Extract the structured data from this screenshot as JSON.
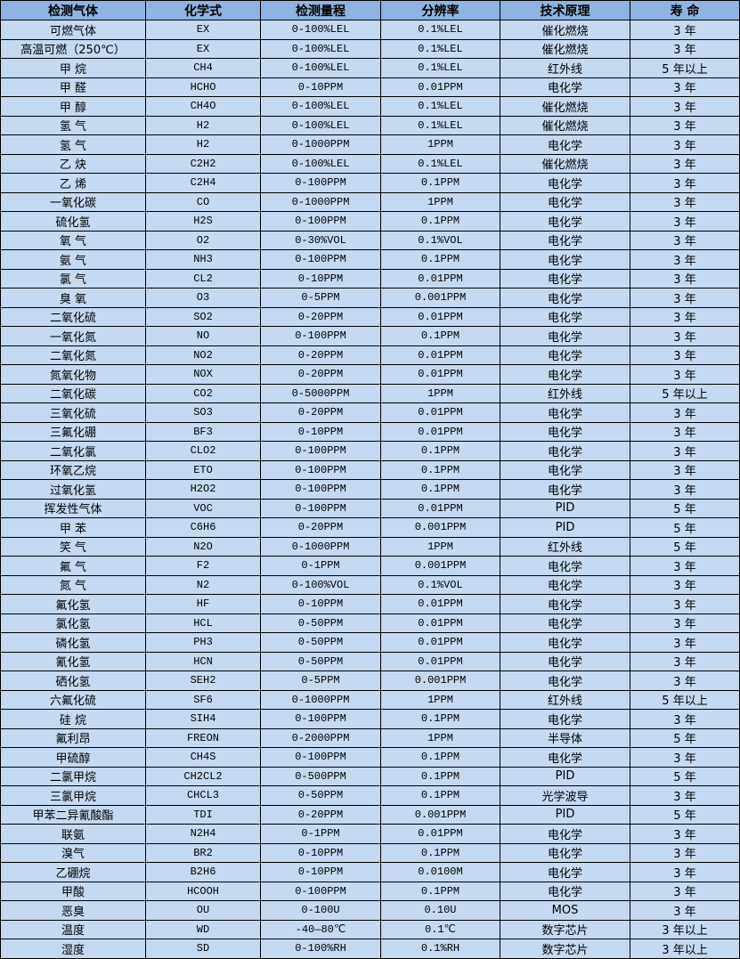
{
  "colors": {
    "header_bg": "#8db4e2",
    "cell_bg": "#c5d9f1",
    "border": "#000000"
  },
  "headers": [
    "检测气体",
    "化学式",
    "检测量程",
    "分辨率",
    "技术原理",
    "寿 命"
  ],
  "rows": [
    [
      "可燃气体",
      "EX",
      "0-100%LEL",
      "0.1%LEL",
      "催化燃烧",
      "3 年"
    ],
    [
      "高温可燃（250℃）",
      "EX",
      "0-100%LEL",
      "0.1%LEL",
      "催化燃烧",
      "3 年"
    ],
    [
      "甲 烷",
      "CH4",
      "0-100%LEL",
      "0.1%LEL",
      "红外线",
      "5 年以上"
    ],
    [
      "甲 醛",
      "HCHO",
      "0-10PPM",
      "0.01PPM",
      "电化学",
      "3 年"
    ],
    [
      "甲 醇",
      "CH4O",
      "0-100%LEL",
      "0.1%LEL",
      "催化燃烧",
      "3 年"
    ],
    [
      "氢 气",
      "H2",
      "0-100%LEL",
      "0.1%LEL",
      "催化燃烧",
      "3 年"
    ],
    [
      "氢 气",
      "H2",
      "0-1000PPM",
      "1PPM",
      "电化学",
      "3 年"
    ],
    [
      "乙 炔",
      "C2H2",
      "0-100%LEL",
      "0.1%LEL",
      "催化燃烧",
      "3 年"
    ],
    [
      "乙 烯",
      "C2H4",
      "0-100PPM",
      "0.1PPM",
      "电化学",
      "3 年"
    ],
    [
      "一氧化碳",
      "CO",
      "0-1000PPM",
      "1PPM",
      "电化学",
      "3 年"
    ],
    [
      "硫化氢",
      "H2S",
      "0-100PPM",
      "0.1PPM",
      "电化学",
      "3 年"
    ],
    [
      "氧 气",
      "O2",
      "0-30%VOL",
      "0.1%VOL",
      "电化学",
      "3 年"
    ],
    [
      "氨 气",
      "NH3",
      "0-100PPM",
      "0.1PPM",
      "电化学",
      "3 年"
    ],
    [
      "氯 气",
      "CL2",
      "0-10PPM",
      "0.01PPM",
      "电化学",
      "3 年"
    ],
    [
      "臭 氧",
      "O3",
      "0-5PPM",
      "0.001PPM",
      "电化学",
      "3 年"
    ],
    [
      "二氧化硫",
      "SO2",
      "0-20PPM",
      "0.01PPM",
      "电化学",
      "3 年"
    ],
    [
      "一氧化氮",
      "NO",
      "0-100PPM",
      "0.1PPM",
      "电化学",
      "3 年"
    ],
    [
      "二氧化氮",
      "NO2",
      "0-20PPM",
      "0.01PPM",
      "电化学",
      "3 年"
    ],
    [
      "氮氧化物",
      "NOX",
      "0-20PPM",
      "0.01PPM",
      "电化学",
      "3 年"
    ],
    [
      "二氧化碳",
      "CO2",
      "0-5000PPM",
      "1PPM",
      "红外线",
      "5 年以上"
    ],
    [
      "三氧化硫",
      "SO3",
      "0-20PPM",
      "0.01PPM",
      "电化学",
      "3 年"
    ],
    [
      "三氟化硼",
      "BF3",
      "0-10PPM",
      "0.01PPM",
      "电化学",
      "3 年"
    ],
    [
      "二氧化氯",
      "CLO2",
      "0-100PPM",
      "0.1PPM",
      "电化学",
      "3 年"
    ],
    [
      "环氧乙烷",
      "ETO",
      "0-100PPM",
      "0.1PPM",
      "电化学",
      "3 年"
    ],
    [
      "过氧化氢",
      "H2O2",
      "0-100PPM",
      "0.1PPM",
      "电化学",
      "3 年"
    ],
    [
      "挥发性气体",
      "VOC",
      "0-100PPM",
      "0.01PPM",
      "PID",
      "5 年"
    ],
    [
      "甲 苯",
      "C6H6",
      "0-20PPM",
      "0.001PPM",
      "PID",
      "5 年"
    ],
    [
      "笑 气",
      "N2O",
      "0-1000PPM",
      "1PPM",
      "红外线",
      "5 年"
    ],
    [
      "氟 气",
      "F2",
      "0-1PPM",
      "0.001PPM",
      "电化学",
      "3 年"
    ],
    [
      "氮 气",
      "N2",
      "0-100%VOL",
      "0.1%VOL",
      "电化学",
      "3 年"
    ],
    [
      "氟化氢",
      "HF",
      "0-10PPM",
      "0.01PPM",
      "电化学",
      "3 年"
    ],
    [
      "氯化氢",
      "HCL",
      "0-50PPM",
      "0.01PPM",
      "电化学",
      "3 年"
    ],
    [
      "磷化氢",
      "PH3",
      "0-50PPM",
      "0.01PPM",
      "电化学",
      "3 年"
    ],
    [
      "氰化氢",
      "HCN",
      "0-50PPM",
      "0.01PPM",
      "电化学",
      "3 年"
    ],
    [
      "硒化氢",
      "SEH2",
      "0-5PPM",
      "0.001PPM",
      "电化学",
      "3 年"
    ],
    [
      "六氟化硫",
      "SF6",
      "0-1000PPM",
      "1PPM",
      "红外线",
      "5 年以上"
    ],
    [
      "硅 烷",
      "SIH4",
      "0-100PPM",
      "0.1PPM",
      "电化学",
      "3 年"
    ],
    [
      "氟利昂",
      "FREON",
      "0-2000PPM",
      "1PPM",
      "半导体",
      "5 年"
    ],
    [
      "甲硫醇",
      "CH4S",
      "0-100PPM",
      "0.1PPM",
      "电化学",
      "3 年"
    ],
    [
      "二氯甲烷",
      "CH2CL2",
      "0-500PPM",
      "0.1PPM",
      "PID",
      "5 年"
    ],
    [
      "三氯甲烷",
      "CHCL3",
      "0-50PPM",
      "0.1PPM",
      "光学波导",
      "3 年"
    ],
    [
      "甲苯二异氰酸酯",
      "TDI",
      "0-20PPM",
      "0.001PPM",
      "PID",
      "5 年"
    ],
    [
      "联氨",
      "N2H4",
      "0-1PPM",
      "0.01PPM",
      "电化学",
      "3 年"
    ],
    [
      "溴气",
      "BR2",
      "0-10PPM",
      "0.1PPM",
      "电化学",
      "3 年"
    ],
    [
      "乙硼烷",
      "B2H6",
      "0-10PPM",
      "0.0100M",
      "电化学",
      "3 年"
    ],
    [
      "甲酸",
      "HCOOH",
      "0-100PPM",
      "0.1PPM",
      "电化学",
      "3 年"
    ],
    [
      "恶臭",
      "OU",
      "0-100U",
      "0.10U",
      "MOS",
      "3 年"
    ],
    [
      "温度",
      "WD",
      "-40—80℃",
      "0.1℃",
      "数字芯片",
      "3 年以上"
    ],
    [
      "湿度",
      "SD",
      "0-100%RH",
      "0.1%RH",
      "数字芯片",
      "3 年以上"
    ]
  ]
}
